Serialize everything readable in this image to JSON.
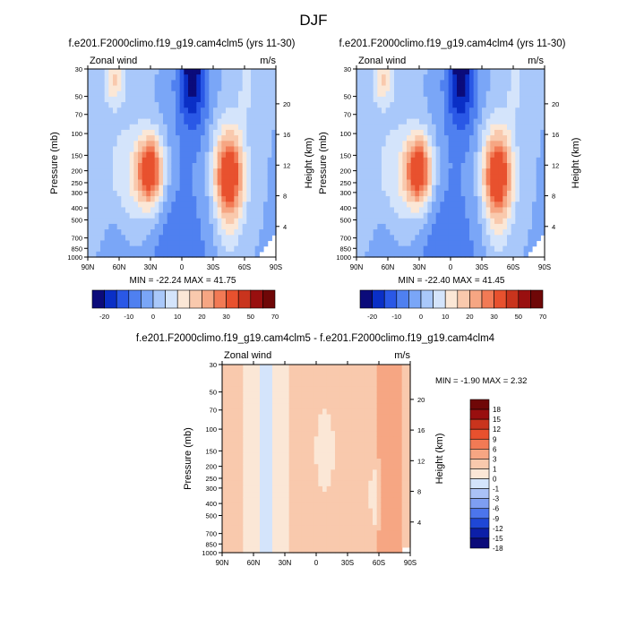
{
  "figure_title": "DJF",
  "colors": {
    "absolute_palette": [
      "#0b0b7a",
      "#0a2fc6",
      "#2a58e6",
      "#4f80f0",
      "#7aa6f7",
      "#a9c8fa",
      "#d4e4fb",
      "#fbe7d6",
      "#f9c9ad",
      "#f6a683",
      "#f27a55",
      "#e8512e",
      "#c9341d",
      "#990f0f",
      "#6f0707"
    ],
    "diff_palette": [
      "#0b0b7a",
      "#0c1fa8",
      "#1f47d6",
      "#4c75ec",
      "#7e9ef2",
      "#aac1f6",
      "#d4e4fb",
      "#fbe7d6",
      "#f9c9ad",
      "#f6a683",
      "#f27a55",
      "#e8512e",
      "#c9341d",
      "#990f0f",
      "#6f0707"
    ]
  },
  "chart_data": [
    {
      "type": "heatmap",
      "title": "f.e201.F2000climo.f19_g19.cam4clm5 (yrs 11-30)",
      "left_label": "Zonal wind",
      "right_label": "m/s",
      "ylabel": "Pressure (mb)",
      "ylabel_right": "Height (km)",
      "x_ticks": [
        "90N",
        "60N",
        "30N",
        "0",
        "30S",
        "60S",
        "90S"
      ],
      "y_ticks": [
        "30",
        "50",
        "70",
        "100",
        "150",
        "200",
        "250",
        "300",
        "400",
        "500",
        "700",
        "850",
        "1000"
      ],
      "height_ticks": [
        "4",
        "8",
        "12",
        "16",
        "20"
      ],
      "min_max_text": "MIN = -22.24   MAX =  41.75",
      "min": -22.24,
      "max": 41.75,
      "colorbar_labels": [
        "-20",
        "-10",
        "0",
        "10",
        "20",
        "30",
        "50",
        "70"
      ],
      "levels": [
        -20,
        -15,
        -10,
        -5,
        0,
        5,
        10,
        15,
        20,
        25,
        30,
        40,
        50,
        60,
        70
      ]
    },
    {
      "type": "heatmap",
      "title": "f.e201.F2000climo.f19_g19.cam4clm4 (yrs 11-30)",
      "left_label": "Zonal wind",
      "right_label": "m/s",
      "ylabel": "Pressure (mb)",
      "ylabel_right": "Height (km)",
      "x_ticks": [
        "90N",
        "60N",
        "30N",
        "0",
        "30S",
        "60S",
        "90S"
      ],
      "y_ticks": [
        "30",
        "50",
        "70",
        "100",
        "150",
        "200",
        "250",
        "300",
        "400",
        "500",
        "700",
        "850",
        "1000"
      ],
      "height_ticks": [
        "4",
        "8",
        "12",
        "16",
        "20"
      ],
      "min_max_text": "MIN = -22.40   MAX =  41.45",
      "min": -22.4,
      "max": 41.45,
      "colorbar_labels": [
        "-20",
        "-10",
        "0",
        "10",
        "20",
        "30",
        "50",
        "70"
      ],
      "levels": [
        -20,
        -15,
        -10,
        -5,
        0,
        5,
        10,
        15,
        20,
        25,
        30,
        40,
        50,
        60,
        70
      ]
    },
    {
      "type": "heatmap",
      "title": "f.e201.F2000climo.f19_g19.cam4clm5 - f.e201.F2000climo.f19_g19.cam4clm4",
      "left_label": "Zonal wind",
      "right_label": "m/s",
      "ylabel": "Pressure (mb)",
      "ylabel_right": "Height (km)",
      "x_ticks": [
        "90N",
        "60N",
        "30N",
        "0",
        "30S",
        "60S",
        "90S"
      ],
      "y_ticks": [
        "30",
        "50",
        "70",
        "100",
        "150",
        "200",
        "250",
        "300",
        "400",
        "500",
        "700",
        "850",
        "1000"
      ],
      "height_ticks": [
        "4",
        "8",
        "12",
        "16",
        "20"
      ],
      "min_max_text": "MIN =  -1.90   MAX =   2.32",
      "min": -1.9,
      "max": 2.32,
      "colorbar_labels": [
        "18",
        "15",
        "12",
        "9",
        "6",
        "3",
        "1",
        "0",
        "-1",
        "-3",
        "-6",
        "-9",
        "-12",
        "-15",
        "-18"
      ],
      "levels": [
        -18,
        -15,
        -12,
        -9,
        -6,
        -3,
        -1,
        0,
        1,
        3,
        6,
        9,
        12,
        15,
        18
      ]
    }
  ]
}
